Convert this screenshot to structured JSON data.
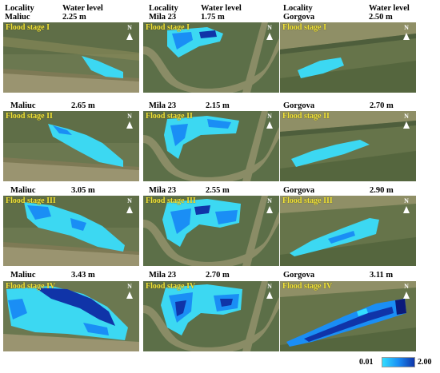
{
  "header": {
    "locality_label": "Locality",
    "water_level_label": "Water level"
  },
  "north_label": "N",
  "columns": [
    {
      "locality": "Maliuc",
      "stages": [
        {
          "stage": "Flood stage I",
          "water_level": "2.25 m"
        },
        {
          "stage": "Flood stage II",
          "water_level": "2.65 m"
        },
        {
          "stage": "Flood stage III",
          "water_level": "3.05 m"
        },
        {
          "stage": "Flood stage IV",
          "water_level": "3.43 m"
        }
      ]
    },
    {
      "locality": "Mila 23",
      "stages": [
        {
          "stage": "Flood stage I",
          "water_level": "1.75 m"
        },
        {
          "stage": "Flood stage II",
          "water_level": "2.15 m"
        },
        {
          "stage": "Flood stage III",
          "water_level": "2.55 m"
        },
        {
          "stage": "Flood stage IV",
          "water_level": "2.70 m"
        }
      ]
    },
    {
      "locality": "Gorgova",
      "stages": [
        {
          "stage": "Flood stage I",
          "water_level": "2.50 m"
        },
        {
          "stage": "Flood stage II",
          "water_level": "2.70 m"
        },
        {
          "stage": "Flood stage III",
          "water_level": "2.90 m"
        },
        {
          "stage": "Flood stage IV",
          "water_level": "3.11 m"
        }
      ]
    }
  ],
  "legend": {
    "min": "0.01",
    "max": "2.00",
    "colors": [
      "#33ddff",
      "#1a8ef5",
      "#1034a8"
    ]
  }
}
